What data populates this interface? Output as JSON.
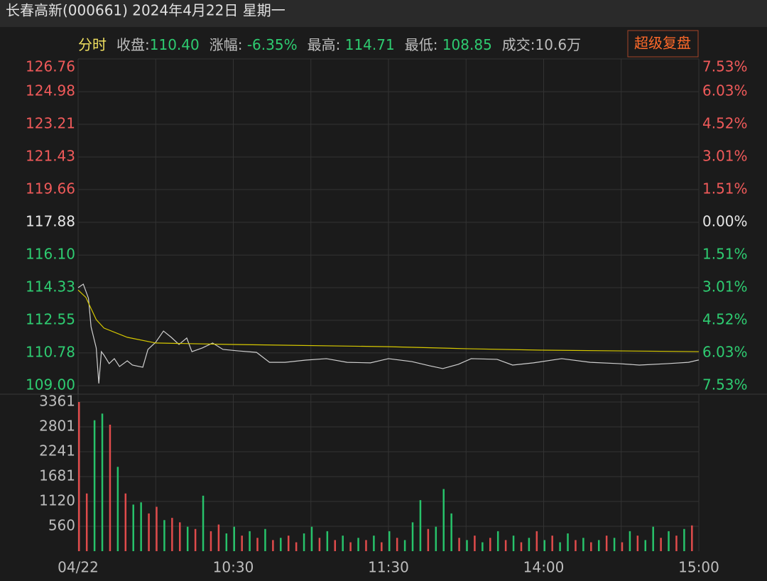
{
  "header": {
    "title": "长春高新(000661) 2024年4月22日 星期一"
  },
  "info_bar": {
    "mode": "分时",
    "mode_color": "#f0e060",
    "label_color": "#bdbdbd",
    "items": [
      {
        "label": "收盘:",
        "value": "110.40",
        "color": "#2ecc71"
      },
      {
        "label": "涨幅: ",
        "value": "-6.35%",
        "color": "#2ecc71"
      },
      {
        "label": "最高: ",
        "value": "114.71",
        "color": "#2ecc71"
      },
      {
        "label": "最低: ",
        "value": "108.85",
        "color": "#2ecc71"
      },
      {
        "label": "成交:",
        "value": "10.6万",
        "color": "#bdbdbd"
      }
    ]
  },
  "button": {
    "label": "超级复盘"
  },
  "chart_data": [
    {
      "type": "line",
      "xlim": [
        0,
        240
      ],
      "xticks": [
        0,
        30,
        60,
        90,
        120,
        150,
        180,
        210,
        240
      ],
      "ylim": [
        109,
        126.76
      ],
      "yticks": [
        {
          "value": 109,
          "label": "109.00"
        },
        110.78,
        112.55,
        114.33,
        {
          "value": 116.1,
          "label": "116.10"
        },
        117.88,
        119.66,
        121.43,
        123.21,
        124.98,
        126.76
      ],
      "y2lim": [
        -7.53,
        7.53
      ],
      "y2ticks": [
        {
          "value": -7.53,
          "label": "7.53%"
        },
        {
          "value": -6.03,
          "label": "6.03%"
        },
        {
          "value": -4.52,
          "label": "4.52%"
        },
        {
          "value": -3.01,
          "label": "3.01%"
        },
        {
          "value": -1.51,
          "label": "1.51%"
        },
        {
          "value": 0,
          "label": "0.00%"
        },
        {
          "value": 1.51,
          "label": "1.51%"
        },
        {
          "value": 3.01,
          "label": "3.01%"
        },
        {
          "value": 4.52,
          "label": "4.52%"
        },
        {
          "value": 6.03,
          "label": "6.03%"
        },
        {
          "value": 7.53,
          "label": "7.53%"
        }
      ],
      "up_color": "#f05a5a",
      "down_color": "#2ecc71",
      "flat_color": "#e6e6e6",
      "grid": true,
      "series": [
        {
          "color": "#cfcfcf",
          "x": [
            0,
            2,
            4,
            5,
            7,
            8,
            9,
            10,
            12,
            14,
            16,
            19,
            21,
            25,
            27,
            30,
            33,
            36,
            39,
            42,
            44,
            48,
            52,
            56,
            62,
            69,
            74,
            80,
            88,
            96,
            104,
            113,
            120,
            129,
            136,
            141,
            147,
            152,
            162,
            168,
            176,
            187,
            198,
            209,
            217,
            228,
            236,
            240
          ],
          "values": [
            114.33,
            114.52,
            113.75,
            112.2,
            111.05,
            109.12,
            110.85,
            110.66,
            110.2,
            110.47,
            110.04,
            110.35,
            110.12,
            110.0,
            110.97,
            111.36,
            111.97,
            111.63,
            111.24,
            111.59,
            110.85,
            111.05,
            111.32,
            110.97,
            110.89,
            110.81,
            110.27,
            110.27,
            110.39,
            110.47,
            110.27,
            110.24,
            110.47,
            110.31,
            110.08,
            109.93,
            110.16,
            110.47,
            110.43,
            110.12,
            110.24,
            110.47,
            110.27,
            110.2,
            110.12,
            110.2,
            110.27,
            110.4
          ]
        },
        {
          "color": "#d6c800",
          "x": [
            0,
            3,
            7,
            10,
            19,
            30,
            60,
            120,
            150,
            180,
            240
          ],
          "values": [
            114.2,
            113.8,
            112.59,
            112.13,
            111.63,
            111.32,
            111.24,
            111.12,
            111.01,
            110.93,
            110.85
          ]
        }
      ]
    },
    {
      "type": "bar",
      "xlim": [
        0,
        240
      ],
      "xticks": [
        0,
        30,
        60,
        90,
        120,
        150,
        180,
        210,
        240
      ],
      "xtick_labels": [
        "04/22",
        null,
        "10:30",
        null,
        "11:30",
        null,
        "14:00",
        null,
        "15:00"
      ],
      "ylim": [
        0,
        3361
      ],
      "yticks": [
        560,
        1120,
        1681,
        2241,
        2801,
        3361
      ],
      "grid": true,
      "x": [
        0,
        3,
        6,
        9,
        12,
        15,
        18,
        21,
        24,
        27,
        30,
        33,
        36,
        39,
        42,
        45,
        48,
        51,
        54,
        57,
        60,
        63,
        66,
        69,
        72,
        75,
        78,
        81,
        84,
        87,
        90,
        93,
        96,
        99,
        102,
        105,
        108,
        111,
        114,
        117,
        120,
        123,
        126,
        129,
        132,
        135,
        138,
        141,
        144,
        147,
        150,
        153,
        156,
        159,
        162,
        165,
        168,
        171,
        174,
        177,
        180,
        183,
        186,
        189,
        192,
        195,
        198,
        201,
        204,
        207,
        210,
        213,
        216,
        219,
        222,
        225,
        228,
        231,
        234,
        237
      ],
      "values": [
        3361,
        1300,
        2950,
        3100,
        2850,
        1900,
        1300,
        1050,
        1100,
        850,
        1000,
        700,
        750,
        650,
        550,
        500,
        1250,
        450,
        600,
        400,
        550,
        350,
        450,
        300,
        500,
        250,
        300,
        350,
        200,
        400,
        550,
        300,
        450,
        250,
        350,
        200,
        300,
        250,
        350,
        200,
        450,
        300,
        250,
        650,
        1150,
        500,
        550,
        1400,
        850,
        300,
        250,
        350,
        200,
        300,
        450,
        250,
        350,
        200,
        300,
        450,
        250,
        350,
        200,
        400,
        250,
        300,
        200,
        250,
        350,
        300,
        200,
        450,
        350,
        250,
        550,
        300,
        450,
        350,
        500,
        580
      ],
      "colors": [
        "#e04b4b",
        "#e04b4b",
        "#27c26a",
        "#27c26a",
        "#e04b4b",
        "#27c26a",
        "#e04b4b",
        "#27c26a",
        "#27c26a",
        "#e04b4b",
        "#e04b4b",
        "#27c26a",
        "#e04b4b",
        "#e04b4b",
        "#27c26a",
        "#e04b4b",
        "#27c26a",
        "#e04b4b",
        "#e04b4b",
        "#27c26a",
        "#27c26a",
        "#e04b4b",
        "#27c26a",
        "#e04b4b",
        "#27c26a",
        "#e04b4b",
        "#27c26a",
        "#e04b4b",
        "#e04b4b",
        "#27c26a",
        "#27c26a",
        "#e04b4b",
        "#27c26a",
        "#e04b4b",
        "#27c26a",
        "#e04b4b",
        "#27c26a",
        "#e04b4b",
        "#27c26a",
        "#e04b4b",
        "#27c26a",
        "#e04b4b",
        "#27c26a",
        "#27c26a",
        "#27c26a",
        "#e04b4b",
        "#27c26a",
        "#27c26a",
        "#27c26a",
        "#e04b4b",
        "#27c26a",
        "#e04b4b",
        "#27c26a",
        "#e04b4b",
        "#27c26a",
        "#e04b4b",
        "#27c26a",
        "#e04b4b",
        "#27c26a",
        "#e04b4b",
        "#27c26a",
        "#e04b4b",
        "#27c26a",
        "#27c26a",
        "#e04b4b",
        "#27c26a",
        "#e04b4b",
        "#27c26a",
        "#e04b4b",
        "#27c26a",
        "#e04b4b",
        "#27c26a",
        "#e04b4b",
        "#27c26a",
        "#27c26a",
        "#e04b4b",
        "#27c26a",
        "#e04b4b",
        "#27c26a",
        "#e04b4b"
      ]
    }
  ]
}
